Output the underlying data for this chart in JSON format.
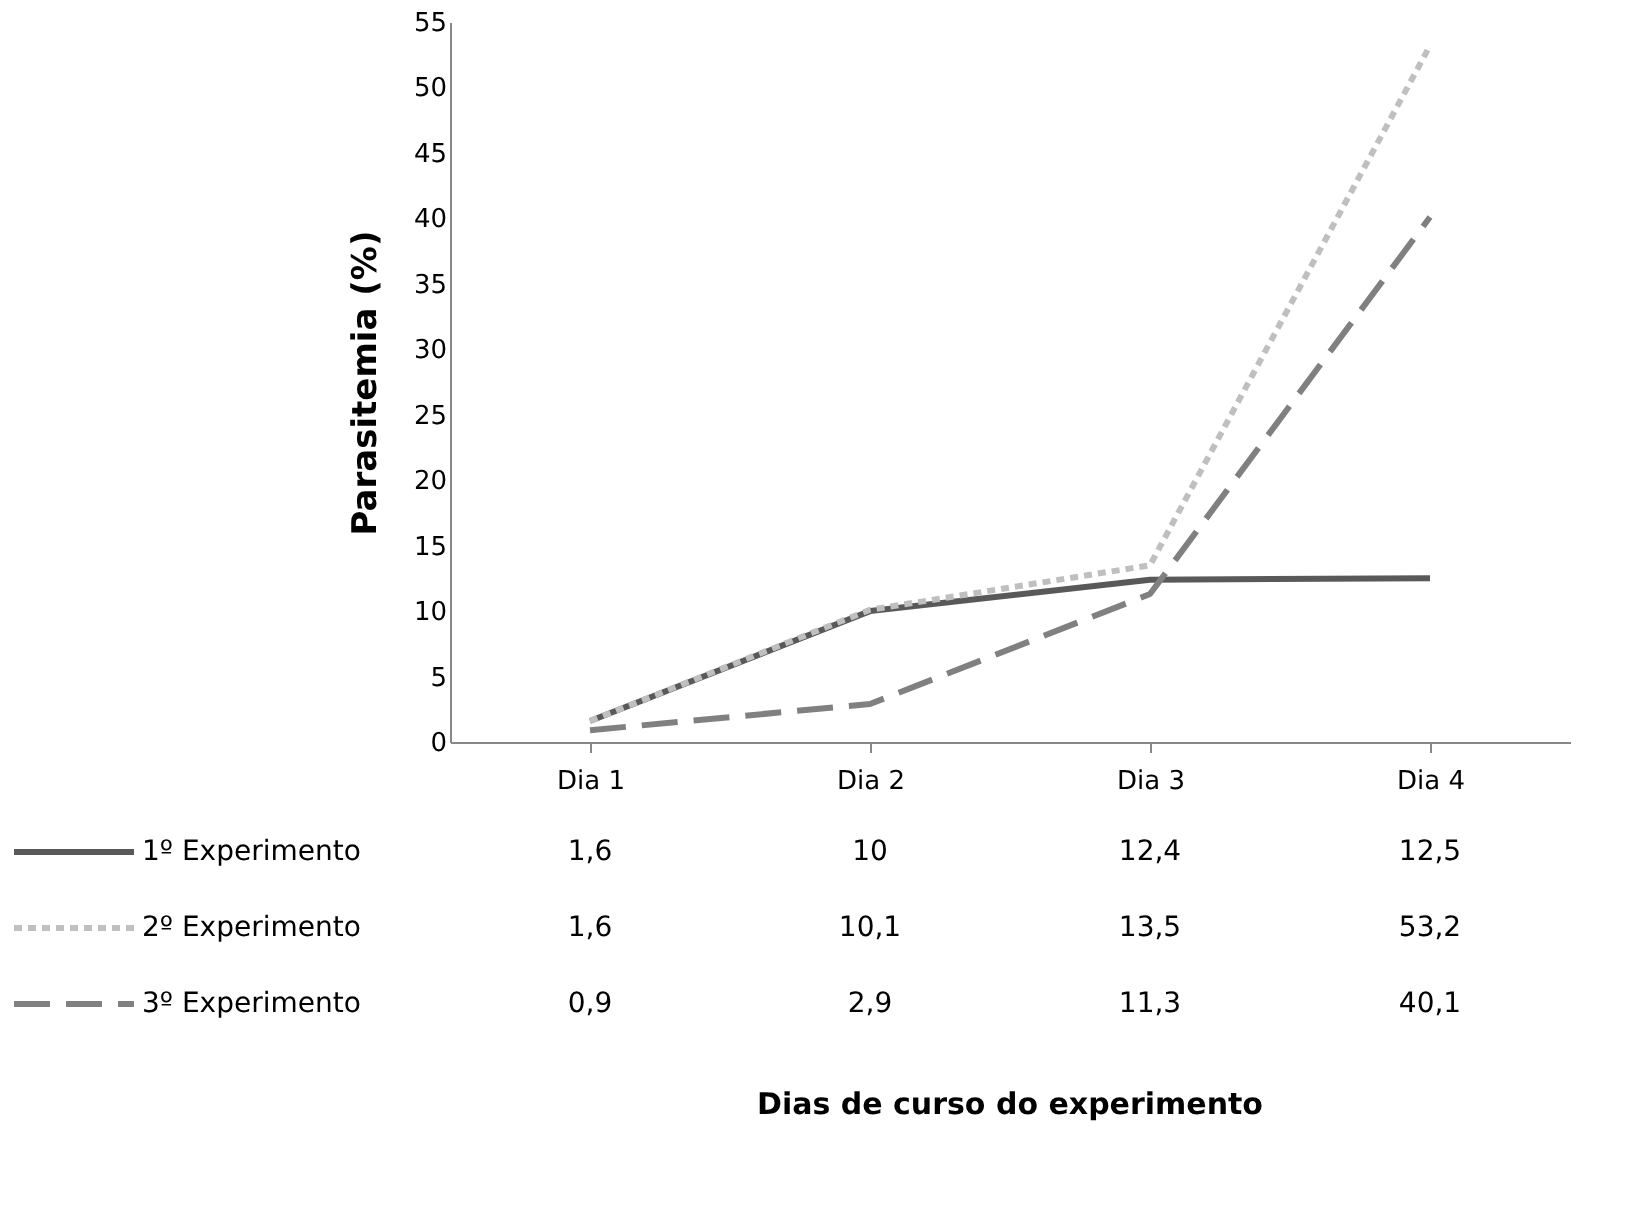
{
  "chart_data": {
    "type": "line",
    "ylabel": "Parasitemia (%)",
    "annotations": [
      "Dias de curso do experimento"
    ],
    "categories": [
      "Dia 1",
      "Dia 2",
      "Dia 3",
      "Dia 4"
    ],
    "series": [
      {
        "name": "1º Experimento",
        "color": "#595959",
        "line_style": "solid",
        "values": [
          1.6,
          10,
          12.4,
          12.5
        ],
        "value_labels": [
          "1,6",
          "10",
          "12,4",
          "12,5"
        ]
      },
      {
        "name": "2º Experimento",
        "color": "#bfbfbf",
        "line_style": "dotted",
        "values": [
          1.6,
          10.1,
          13.5,
          53.2
        ],
        "value_labels": [
          "1,6",
          "10,1",
          "13,5",
          "53,2"
        ]
      },
      {
        "name": "3º Experimento",
        "color": "#808080",
        "line_style": "dashed",
        "values": [
          0.9,
          2.9,
          11.3,
          40.1
        ],
        "value_labels": [
          "0,9",
          "2,9",
          "11,3",
          "40,1"
        ]
      }
    ],
    "ylim": [
      0,
      55
    ],
    "yticks": [
      0,
      5,
      10,
      15,
      20,
      25,
      30,
      35,
      40,
      45,
      50,
      55
    ],
    "grid": false,
    "legend": "bottom",
    "data_labels": true,
    "marker": "none"
  }
}
